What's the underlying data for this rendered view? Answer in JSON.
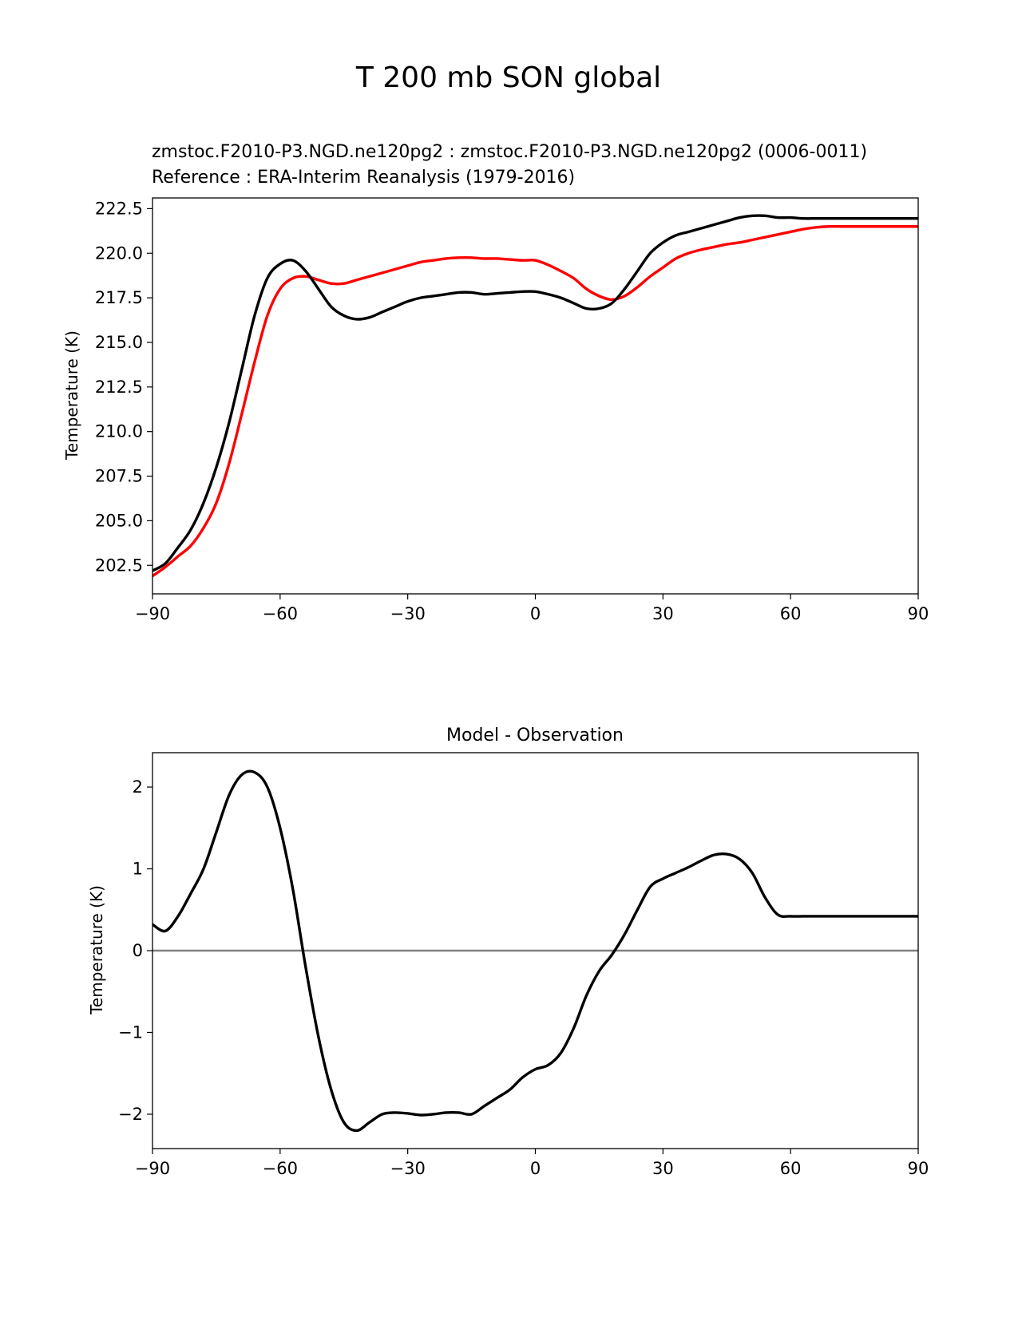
{
  "figure": {
    "suptitle": "T 200 mb SON global"
  },
  "colors": {
    "model": "#000000",
    "reference": "#ff0000",
    "zero_line": "#808080"
  },
  "chart_data": [
    {
      "type": "line",
      "title_test": "zmstoc.F2010-P3.NGD.ne120pg2 : zmstoc.F2010-P3.NGD.ne120pg2 (0006-0011)",
      "title_ref": "Reference : ERA-Interim Reanalysis (1979-2016)",
      "xlabel": "",
      "ylabel": "Temperature (K)",
      "xlim": [
        -90,
        90
      ],
      "ylim": [
        200.9,
        223.1
      ],
      "xticks": [
        -90,
        -60,
        -30,
        0,
        30,
        60,
        90
      ],
      "xtick_labels": [
        "−90",
        "−60",
        "−30",
        "0",
        "30",
        "60",
        "90"
      ],
      "yticks": [
        202.5,
        205.0,
        207.5,
        210.0,
        212.5,
        215.0,
        217.5,
        220.0,
        222.5
      ],
      "ytick_labels": [
        "202.5",
        "205.0",
        "207.5",
        "210.0",
        "212.5",
        "215.0",
        "217.5",
        "220.0",
        "222.5"
      ],
      "x": [
        -90,
        -87,
        -84,
        -81,
        -78,
        -75,
        -72,
        -69,
        -66,
        -63,
        -60,
        -57,
        -54,
        -51,
        -48,
        -45,
        -42,
        -39,
        -36,
        -33,
        -30,
        -27,
        -24,
        -21,
        -18,
        -15,
        -12,
        -9,
        -6,
        -3,
        0,
        3,
        6,
        9,
        12,
        15,
        18,
        21,
        24,
        27,
        30,
        33,
        36,
        39,
        42,
        45,
        48,
        51,
        54,
        57,
        60,
        63,
        66,
        69,
        72,
        75,
        78,
        81,
        84,
        87,
        90
      ],
      "series": [
        {
          "name": "zmstoc.F2010-P3.NGD.ne120pg2",
          "values": [
            202.2,
            202.6,
            203.5,
            204.5,
            206.0,
            208.0,
            210.5,
            213.5,
            216.5,
            218.6,
            219.4,
            219.6,
            219.0,
            218.0,
            217.0,
            216.5,
            216.3,
            216.4,
            216.7,
            217.0,
            217.3,
            217.5,
            217.6,
            217.7,
            217.8,
            217.8,
            217.7,
            217.75,
            217.8,
            217.85,
            217.85,
            217.7,
            217.5,
            217.2,
            216.9,
            216.9,
            217.2,
            218.0,
            219.0,
            220.0,
            220.6,
            221.0,
            221.2,
            221.4,
            221.6,
            221.8,
            222.0,
            222.1,
            222.1,
            222.0,
            222.0,
            221.95,
            221.95,
            221.95,
            221.95,
            221.95,
            221.95,
            221.95,
            221.95,
            221.95,
            221.95
          ]
        },
        {
          "name": "ERA-Interim Reanalysis",
          "values": [
            201.9,
            202.4,
            203.0,
            203.6,
            204.6,
            206.0,
            208.2,
            211.0,
            213.9,
            216.5,
            218.0,
            218.6,
            218.7,
            218.5,
            218.3,
            218.3,
            218.5,
            218.7,
            218.9,
            219.1,
            219.3,
            219.5,
            219.6,
            219.7,
            219.75,
            219.75,
            219.7,
            219.7,
            219.65,
            219.6,
            219.6,
            219.35,
            219.0,
            218.6,
            218.0,
            217.6,
            217.4,
            217.6,
            218.1,
            218.7,
            219.2,
            219.7,
            220.0,
            220.2,
            220.35,
            220.5,
            220.6,
            220.75,
            220.9,
            221.05,
            221.2,
            221.35,
            221.45,
            221.5,
            221.5,
            221.5,
            221.5,
            221.5,
            221.5,
            221.5,
            221.5
          ]
        }
      ]
    },
    {
      "type": "line",
      "title": "Model - Observation",
      "xlabel": "",
      "ylabel": "Temperature (K)",
      "xlim": [
        -90,
        90
      ],
      "ylim": [
        -2.42,
        2.42
      ],
      "xticks": [
        -90,
        -60,
        -30,
        0,
        30,
        60,
        90
      ],
      "xtick_labels": [
        "−90",
        "−60",
        "−30",
        "0",
        "30",
        "60",
        "90"
      ],
      "yticks": [
        -2,
        -1,
        0,
        1,
        2
      ],
      "ytick_labels": [
        "−2",
        "−1",
        "0",
        "1",
        "2"
      ],
      "hline": 0,
      "x": [
        -90,
        -87,
        -84,
        -81,
        -78,
        -75,
        -72,
        -69,
        -66,
        -63,
        -60,
        -57,
        -54,
        -51,
        -48,
        -45,
        -42,
        -39,
        -36,
        -33,
        -30,
        -27,
        -24,
        -21,
        -18,
        -15,
        -12,
        -9,
        -6,
        -3,
        0,
        3,
        6,
        9,
        12,
        15,
        18,
        21,
        24,
        27,
        30,
        33,
        36,
        39,
        42,
        45,
        48,
        51,
        54,
        57,
        60,
        63,
        66,
        69,
        72,
        75,
        78,
        81,
        84,
        87,
        90
      ],
      "series": [
        {
          "name": "Model - Observation",
          "values": [
            0.32,
            0.24,
            0.42,
            0.7,
            1.0,
            1.45,
            1.9,
            2.15,
            2.18,
            2.0,
            1.5,
            0.75,
            -0.2,
            -1.05,
            -1.7,
            -2.1,
            -2.2,
            -2.1,
            -2.0,
            -1.98,
            -1.99,
            -2.01,
            -2.0,
            -1.98,
            -1.98,
            -2.0,
            -1.9,
            -1.8,
            -1.7,
            -1.55,
            -1.45,
            -1.4,
            -1.25,
            -0.95,
            -0.55,
            -0.25,
            -0.05,
            0.2,
            0.5,
            0.78,
            0.88,
            0.95,
            1.02,
            1.1,
            1.17,
            1.18,
            1.12,
            0.95,
            0.65,
            0.44,
            0.42,
            0.42,
            0.42,
            0.42,
            0.42,
            0.42,
            0.42,
            0.42,
            0.42,
            0.42,
            0.42
          ]
        }
      ]
    }
  ]
}
